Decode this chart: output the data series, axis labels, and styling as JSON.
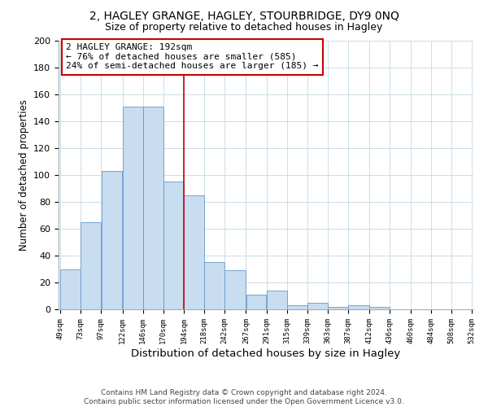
{
  "title1": "2, HAGLEY GRANGE, HAGLEY, STOURBRIDGE, DY9 0NQ",
  "title2": "Size of property relative to detached houses in Hagley",
  "xlabel": "Distribution of detached houses by size in Hagley",
  "ylabel": "Number of detached properties",
  "bar_left_edges": [
    49,
    73,
    97,
    122,
    146,
    170,
    194,
    218,
    242,
    267,
    291,
    315,
    339,
    363,
    387,
    412,
    436,
    460,
    484,
    508
  ],
  "bar_widths": [
    24,
    24,
    25,
    24,
    24,
    24,
    24,
    24,
    25,
    24,
    24,
    24,
    24,
    24,
    25,
    24,
    24,
    24,
    24,
    24
  ],
  "bar_heights": [
    30,
    65,
    103,
    151,
    151,
    95,
    85,
    35,
    29,
    11,
    14,
    3,
    5,
    2,
    3,
    2,
    0,
    0,
    0,
    0
  ],
  "bar_color": "#c8ddf0",
  "bar_edgecolor": "#6699cc",
  "tick_labels": [
    "49sqm",
    "73sqm",
    "97sqm",
    "122sqm",
    "146sqm",
    "170sqm",
    "194sqm",
    "218sqm",
    "242sqm",
    "267sqm",
    "291sqm",
    "315sqm",
    "339sqm",
    "363sqm",
    "387sqm",
    "412sqm",
    "436sqm",
    "460sqm",
    "484sqm",
    "508sqm",
    "532sqm"
  ],
  "vline_x": 194,
  "vline_color": "#cc0000",
  "ylim": [
    0,
    200
  ],
  "yticks": [
    0,
    20,
    40,
    60,
    80,
    100,
    120,
    140,
    160,
    180,
    200
  ],
  "annotation_text": "2 HAGLEY GRANGE: 192sqm\n← 76% of detached houses are smaller (585)\n24% of semi-detached houses are larger (185) →",
  "annotation_box_edgecolor": "#cc0000",
  "footer_text": "Contains HM Land Registry data © Crown copyright and database right 2024.\nContains public sector information licensed under the Open Government Licence v3.0.",
  "title1_fontsize": 10,
  "title2_fontsize": 9,
  "xlabel_fontsize": 9.5,
  "ylabel_fontsize": 8.5,
  "annotation_fontsize": 8,
  "footer_fontsize": 6.5,
  "tick_fontsize": 6.5
}
